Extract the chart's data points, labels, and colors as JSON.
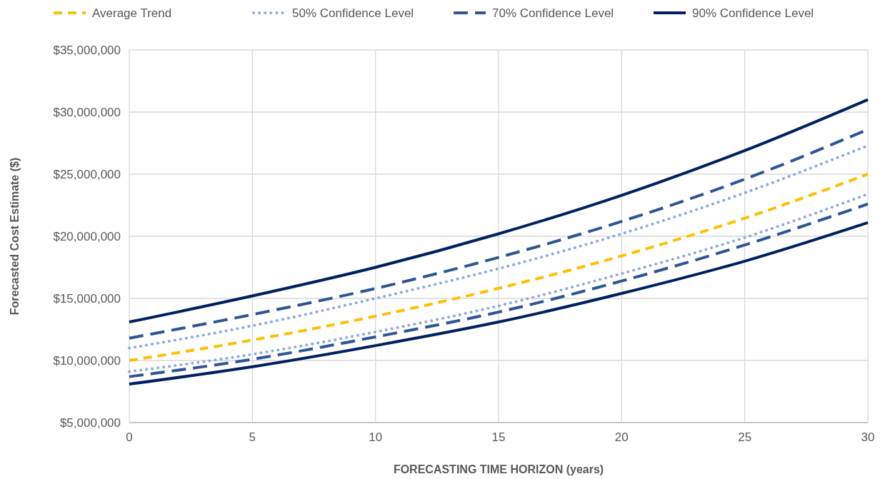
{
  "chart_data": {
    "type": "line",
    "xlabel": "FORECASTING TIME HORIZON (years)",
    "ylabel": "Forecasted Cost Estimate ($)",
    "x": [
      0,
      5,
      10,
      15,
      20,
      25,
      30
    ],
    "xlim": [
      0,
      30
    ],
    "xticks": [
      0,
      5,
      10,
      15,
      20,
      25,
      30
    ],
    "ylim": [
      5000000,
      35000000
    ],
    "yticks": [
      {
        "value": 5000000,
        "label": "$5,000,000"
      },
      {
        "value": 10000000,
        "label": "$10,000,000"
      },
      {
        "value": 15000000,
        "label": "$15,000,000"
      },
      {
        "value": 20000000,
        "label": "$20,000,000"
      },
      {
        "value": 25000000,
        "label": "$25,000,000"
      },
      {
        "value": 30000000,
        "label": "$30,000,000"
      },
      {
        "value": 35000000,
        "label": "$35,000,000"
      }
    ],
    "grid": true,
    "legend": "top",
    "series": [
      {
        "name": "Average Trend",
        "color": "#ffc000",
        "line_style": "dashed",
        "values": [
          10000000,
          11650000,
          13570000,
          15810000,
          18420000,
          21460000,
          25000000
        ]
      },
      {
        "name": "50% Confidence Level",
        "color": "#8faadc",
        "line_style": "dotted",
        "values": [
          11000000,
          12800000,
          15000000,
          17400000,
          20200000,
          23500000,
          27300000
        ]
      },
      {
        "color": "#8faadc",
        "line_style": "dotted",
        "values": [
          9100000,
          10500000,
          12300000,
          14400000,
          17000000,
          19900000,
          23400000
        ]
      },
      {
        "name": "70% Confidence Level",
        "color": "#2f5597",
        "line_style": "dashed",
        "values": [
          11800000,
          13700000,
          15800000,
          18300000,
          21200000,
          24600000,
          28600000
        ]
      },
      {
        "color": "#2f5597",
        "line_style": "dashed",
        "values": [
          8700000,
          10100000,
          11900000,
          13900000,
          16400000,
          19300000,
          22600000
        ]
      },
      {
        "name": "90% Confidence Level",
        "color": "#002060",
        "line_style": "solid",
        "values": [
          13100000,
          15200000,
          17500000,
          20200000,
          23300000,
          26900000,
          31000000
        ]
      },
      {
        "color": "#002060",
        "line_style": "solid",
        "values": [
          8100000,
          9500000,
          11200000,
          13100000,
          15400000,
          18000000,
          21100000
        ]
      }
    ]
  }
}
